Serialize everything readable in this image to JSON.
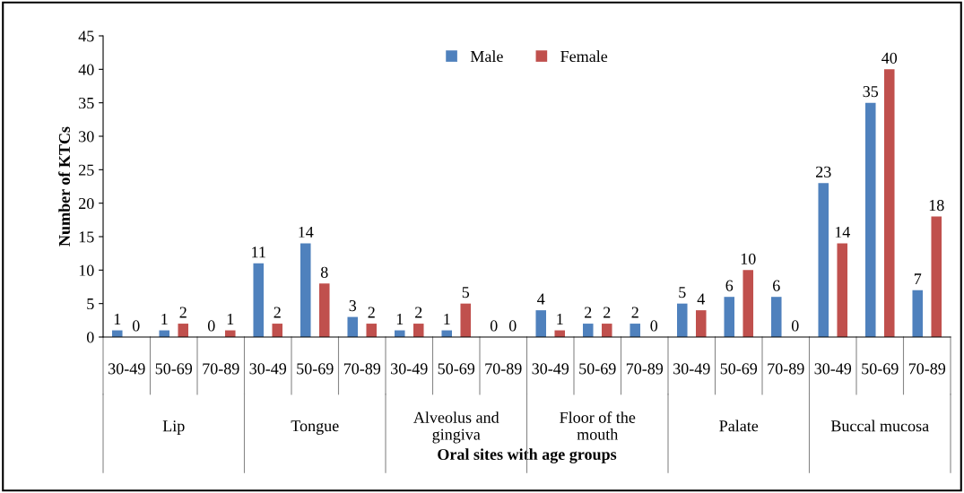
{
  "chart_data": {
    "type": "bar",
    "categories": [
      "30-49",
      "50-69",
      "70-89",
      "30-49",
      "50-69",
      "70-89",
      "30-49",
      "50-69",
      "70-89",
      "30-49",
      "50-69",
      "70-89",
      "30-49",
      "50-69",
      "70-89",
      "30-49",
      "50-69",
      "70-89"
    ],
    "series": [
      {
        "name": "Male",
        "color": "#4f81bd",
        "values": [
          1,
          1,
          0,
          11,
          14,
          3,
          1,
          1,
          0,
          4,
          2,
          2,
          5,
          6,
          6,
          23,
          35,
          7
        ]
      },
      {
        "name": "Female",
        "color": "#c0504d",
        "values": [
          0,
          2,
          1,
          2,
          8,
          2,
          2,
          5,
          0,
          1,
          2,
          0,
          4,
          10,
          0,
          14,
          40,
          18
        ]
      }
    ],
    "annotations": [
      "Lip",
      "Tongue",
      "Alveolus and\ngingiva",
      "Floor of the\nmouth",
      "Palate",
      "Buccal mucosa"
    ],
    "xlabel": "Oral sites with age groups",
    "ylabel": "Number of KTCs",
    "ylim": [
      0,
      45
    ],
    "yticks": [
      0,
      5,
      10,
      15,
      20,
      25,
      30,
      35,
      40,
      45
    ],
    "data_labels": true,
    "legend": "top",
    "grid": false
  }
}
